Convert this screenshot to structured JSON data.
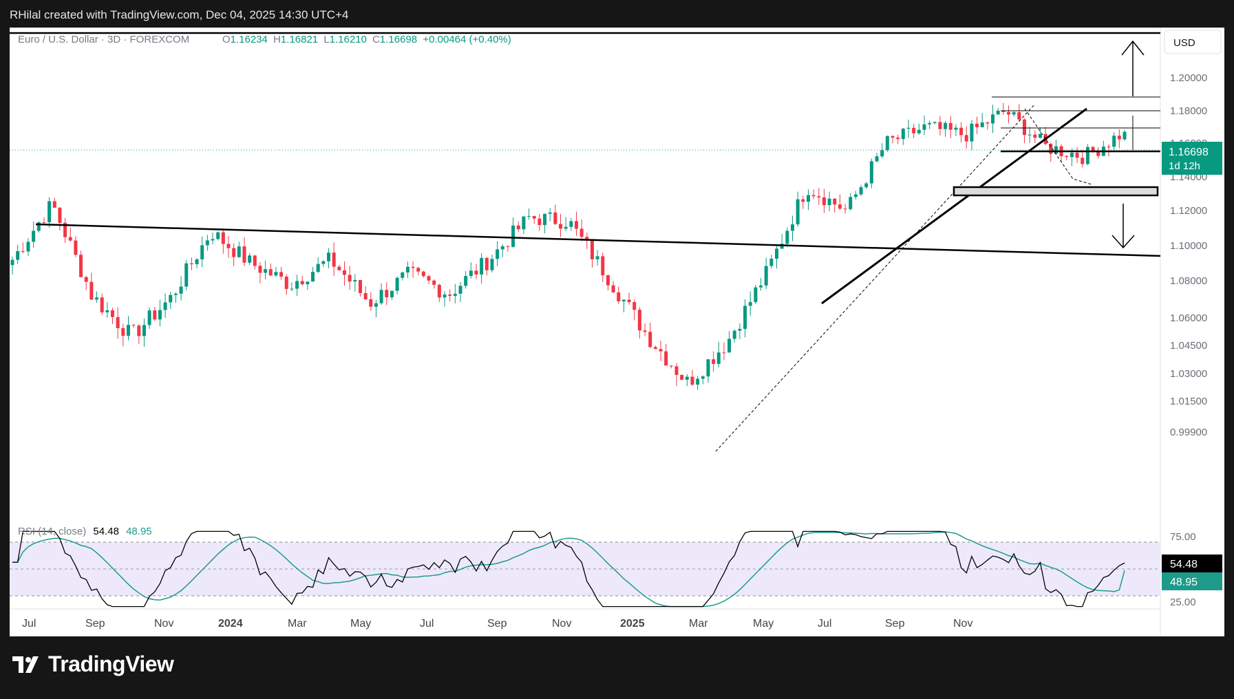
{
  "header": {
    "attribution": "RHilal created with TradingView.com, Dec 04, 2025 14:30 UTC+4"
  },
  "legend": {
    "symbol": "Euro / U.S. Dollar · 3D · FOREXCOM",
    "open_label": "O",
    "open": "1.16234",
    "high_label": "H",
    "high": "1.16821",
    "low_label": "L",
    "low": "1.16210",
    "close_label": "C",
    "close": "1.16698",
    "change": "+0.00464 (+0.40%)"
  },
  "price_axis": {
    "currency": "USD",
    "ticks": [
      "1.20000",
      "1.18000",
      "1.16000",
      "1.14000",
      "1.12000",
      "1.10000",
      "1.08000",
      "1.06000",
      "1.04500",
      "1.03000",
      "1.01500",
      "0.99900"
    ],
    "last_price_label": "1.16698",
    "countdown": "1d 12h"
  },
  "rsi": {
    "title": "RSI (14, close)",
    "value": "54.48",
    "ma_value": "48.95",
    "ticks": [
      "75.00",
      "25.00"
    ]
  },
  "time_axis": {
    "labels": [
      "Jul",
      "Sep",
      "Nov",
      "2024",
      "Mar",
      "May",
      "Jul",
      "Sep",
      "Nov",
      "2025",
      "Mar",
      "May",
      "Jul",
      "Sep",
      "Nov"
    ]
  },
  "colors": {
    "up": "#089981",
    "down": "#f23645",
    "rsi_line": "#000000",
    "rsi_ma": "#1d9a8a",
    "rsi_band": "#ede9fb"
  },
  "brand": {
    "logo_text": "TradingView",
    "logo_icon": "tradingview-logo-icon"
  },
  "chart_data": {
    "type": "candlestick",
    "timeframe": "3D",
    "series_anchor_points": [
      {
        "label": "Jun 2023",
        "close": 1.092
      },
      {
        "label": "Jul 2023",
        "close": 1.124
      },
      {
        "label": "Sep 2023",
        "close": 1.072
      },
      {
        "label": "Oct 2023",
        "close": 1.05
      },
      {
        "label": "Nov 2023",
        "close": 1.071
      },
      {
        "label": "Dec 2023",
        "close": 1.108
      },
      {
        "label": "Jan 2024",
        "close": 1.09
      },
      {
        "label": "Feb 2024",
        "close": 1.078
      },
      {
        "label": "Mar 2024",
        "close": 1.092
      },
      {
        "label": "Apr 2024",
        "close": 1.068
      },
      {
        "label": "May 2024",
        "close": 1.084
      },
      {
        "label": "Jun 2024",
        "close": 1.073
      },
      {
        "label": "Jul 2024",
        "close": 1.092
      },
      {
        "label": "Aug 2024",
        "close": 1.116
      },
      {
        "label": "Sep 2024",
        "close": 1.114
      },
      {
        "label": "Oct 2024",
        "close": 1.082
      },
      {
        "label": "Nov 2024",
        "close": 1.05
      },
      {
        "label": "Jan 2025",
        "close": 1.025
      },
      {
        "label": "Feb 2025",
        "close": 1.047
      },
      {
        "label": "Mar 2025",
        "close": 1.085
      },
      {
        "label": "Apr 2025",
        "close": 1.134
      },
      {
        "label": "May 2025",
        "close": 1.12
      },
      {
        "label": "Jun 2025",
        "close": 1.16
      },
      {
        "label": "Jul 2025",
        "close": 1.17
      },
      {
        "label": "Aug 2025",
        "close": 1.165
      },
      {
        "label": "Sep 2025",
        "close": 1.18
      },
      {
        "label": "Oct 2025",
        "close": 1.158
      },
      {
        "label": "Nov 2025",
        "close": 1.152
      },
      {
        "label": "Dec 2025",
        "close": 1.16698
      }
    ],
    "y_range": [
      0.99,
      1.215
    ],
    "rsi_range": [
      20,
      80
    ],
    "rsi_levels": [
      70,
      50,
      30
    ]
  }
}
